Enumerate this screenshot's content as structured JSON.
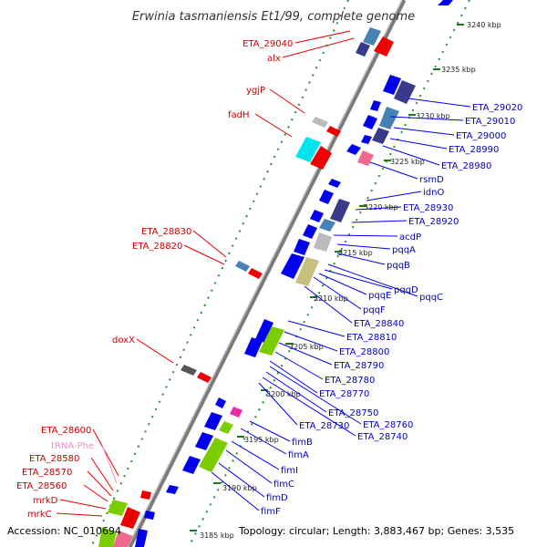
{
  "title": "Erwinia tasmaniensis Et1/99, complete genome",
  "footer": {
    "accession": "Accession: NC_010694",
    "summary": "Topology: circular; Length: 3,883,467 bp; Genes: 3,535"
  },
  "colors": {
    "backbone": "#8a8a8a",
    "dots": "#2e8b2e",
    "ticks": "#1a7a1a",
    "label_left": "#cc0000",
    "label_right": "#0000cc",
    "label_trna": "#f090c0",
    "gene_blue": "#0000ee",
    "gene_red": "#ee0000",
    "gene_navy": "#3a3a8a",
    "gene_steel": "#4682b4",
    "gene_cyan": "#00e5ee",
    "gene_grey": "#bbbbbb",
    "gene_pink": "#ee6a8a",
    "gene_khaki": "#c8c080",
    "gene_green": "#7ccd00",
    "gene_magenta": "#ee2aaa"
  },
  "ticks": [
    "3240 kbp",
    "3235 kbp",
    "3230 kbp",
    "3225 kbp",
    "3220 kbp",
    "3215 kbp",
    "3210 kbp",
    "3205 kbp",
    "3200 kbp",
    "3195 kbp",
    "3190 kbp",
    "3185 kbp"
  ],
  "left_labels": [
    {
      "text": "ETA_29040",
      "kind": "left"
    },
    {
      "text": "alx",
      "kind": "left"
    },
    {
      "text": "ygjP",
      "kind": "left"
    },
    {
      "text": "fadH",
      "kind": "left"
    },
    {
      "text": "ETA_28830",
      "kind": "left"
    },
    {
      "text": "ETA_28820",
      "kind": "left"
    },
    {
      "text": "doxX",
      "kind": "left"
    },
    {
      "text": "ETA_28600",
      "kind": "left"
    },
    {
      "text": "tRNA-Phe",
      "kind": "trna"
    },
    {
      "text": "ETA_28580",
      "kind": "left"
    },
    {
      "text": "ETA_28570",
      "kind": "left"
    },
    {
      "text": "ETA_28560",
      "kind": "left"
    },
    {
      "text": "mrkD",
      "kind": "left"
    },
    {
      "text": "mrkC",
      "kind": "left"
    }
  ],
  "right_labels": [
    "ETA_29020",
    "ETA_29010",
    "ETA_29000",
    "ETA_28990",
    "ETA_28980",
    "rsmD",
    "idnO",
    "ETA_28930",
    "ETA_28920",
    "acdP",
    "pqqA",
    "pqqB",
    "pqqC",
    "pqqD",
    "pqqE",
    "pqqF",
    "ETA_28840",
    "ETA_28810",
    "ETA_28800",
    "ETA_28790",
    "ETA_28780",
    "ETA_28770",
    "ETA_28760",
    "ETA_28750",
    "ETA_28740",
    "ETA_28730",
    "fimB",
    "fimA",
    "fimI",
    "fimC",
    "fimD",
    "fimF"
  ]
}
